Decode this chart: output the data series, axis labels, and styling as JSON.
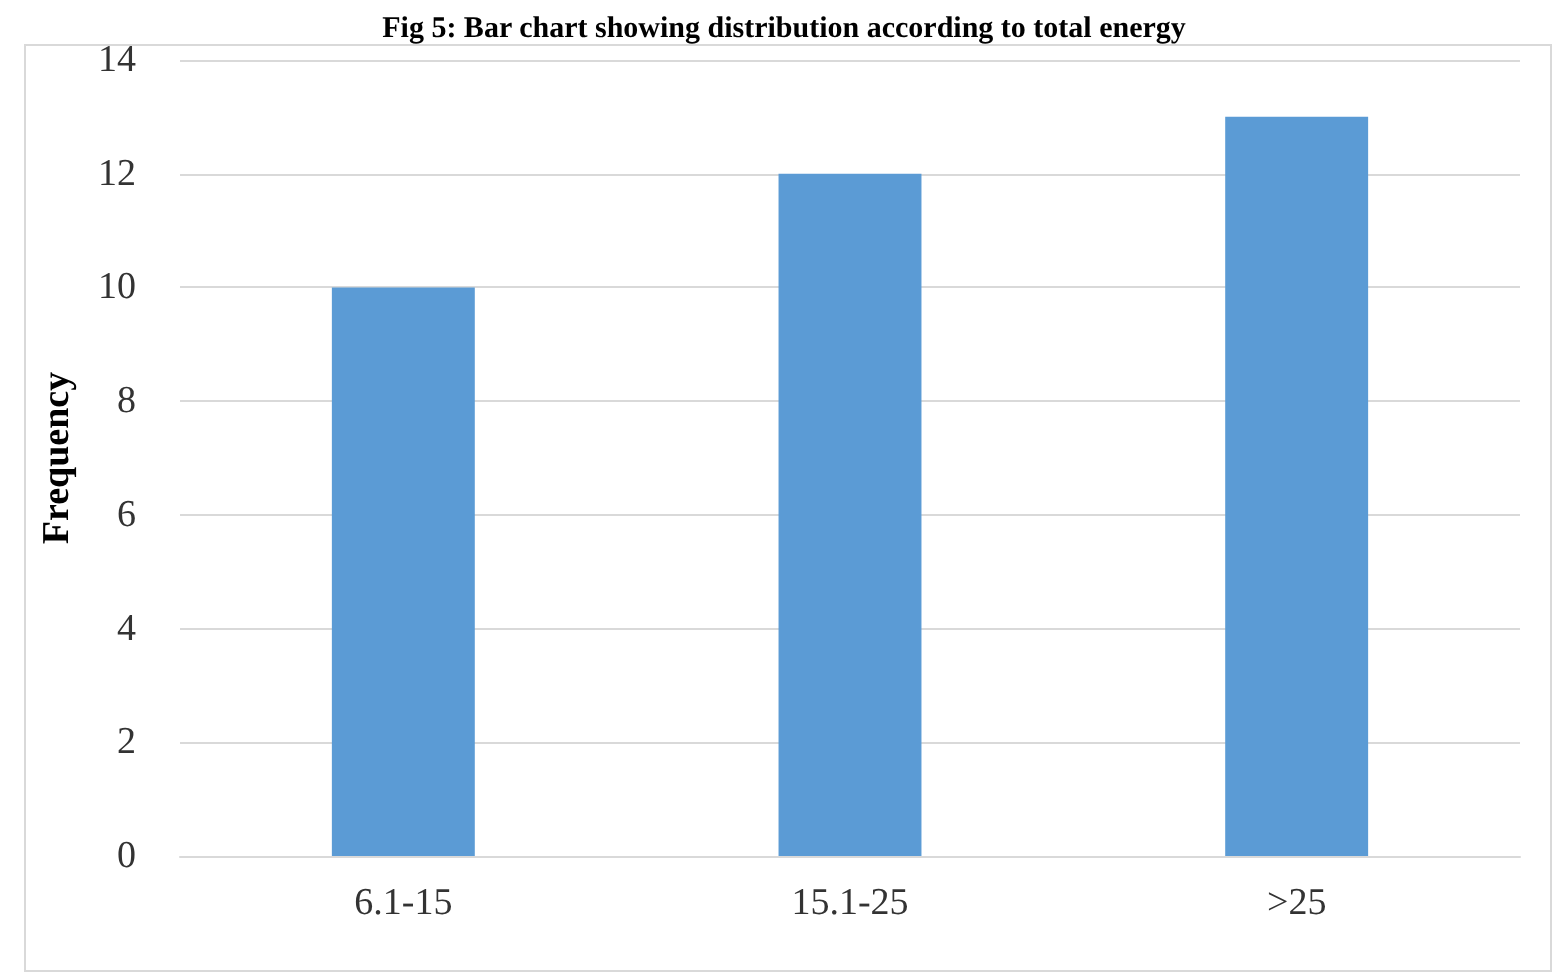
{
  "chart_data": {
    "type": "bar",
    "title": "Fig 5: Bar chart showing distribution according to total energy",
    "ylabel": "Frequency",
    "categories": [
      "6.1-15",
      "15.1-25",
      ">25"
    ],
    "values": [
      10,
      12,
      13
    ],
    "color": "#5b9bd5",
    "ylim": [
      0,
      14
    ],
    "yticks": [
      0,
      2,
      4,
      6,
      8,
      10,
      12,
      14
    ],
    "grid": "y"
  }
}
